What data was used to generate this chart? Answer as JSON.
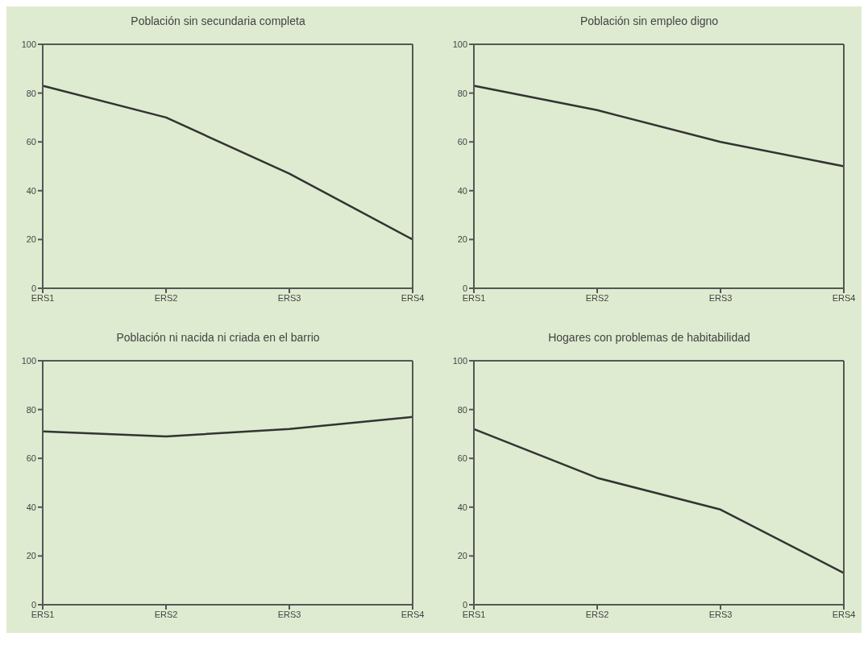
{
  "chart_data": [
    {
      "type": "line",
      "title": "Población sin secundaria completa",
      "categories": [
        "ERS1",
        "ERS2",
        "ERS3",
        "ERS4"
      ],
      "values": [
        83,
        70,
        47,
        20
      ],
      "color": "#333333",
      "ylim": [
        0,
        100
      ],
      "yticks": [
        0,
        20,
        40,
        60,
        80,
        100
      ],
      "marker": "none",
      "line_style": "solid"
    },
    {
      "type": "line",
      "title": "Población sin empleo digno",
      "categories": [
        "ERS1",
        "ERS2",
        "ERS3",
        "ERS4"
      ],
      "values": [
        83,
        73,
        60,
        50
      ],
      "color": "#333333",
      "ylim": [
        0,
        100
      ],
      "yticks": [
        0,
        20,
        40,
        60,
        80,
        100
      ],
      "marker": "none",
      "line_style": "solid"
    },
    {
      "type": "line",
      "title": "Población ni nacida ni criada en el barrio",
      "categories": [
        "ERS1",
        "ERS2",
        "ERS3",
        "ERS4"
      ],
      "values": [
        71,
        69,
        72,
        77
      ],
      "color": "#333333",
      "ylim": [
        0,
        100
      ],
      "yticks": [
        0,
        20,
        40,
        60,
        80,
        100
      ],
      "marker": "none",
      "line_style": "solid"
    },
    {
      "type": "line",
      "title": "Hogares con problemas de habitabilidad",
      "categories": [
        "ERS1",
        "ERS2",
        "ERS3",
        "ERS4"
      ],
      "values": [
        72,
        52,
        39,
        13
      ],
      "color": "#333333",
      "ylim": [
        0,
        100
      ],
      "yticks": [
        0,
        20,
        40,
        60,
        80,
        100
      ],
      "marker": "none",
      "line_style": "solid"
    }
  ]
}
